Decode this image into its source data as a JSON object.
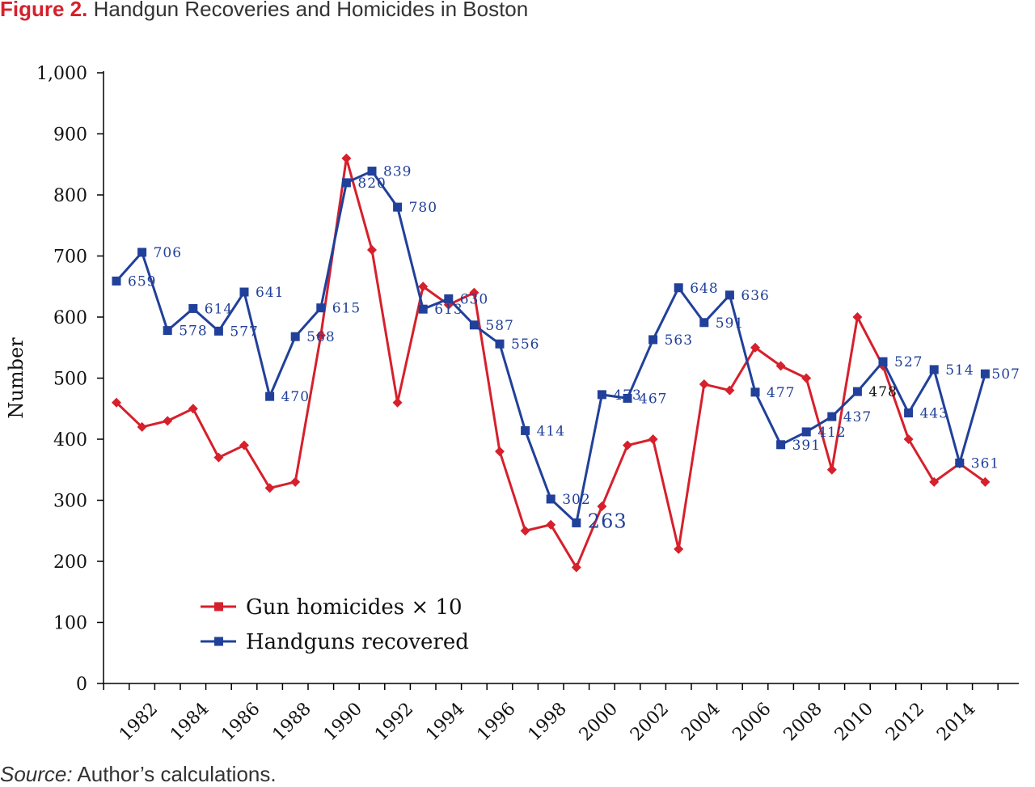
{
  "figure": {
    "label": "Figure 2.",
    "title": "Handgun Recoveries and Homicides in Boston",
    "source_label": "Source:",
    "source_text": "Author’s calculations."
  },
  "colors": {
    "homicides": "#d6202c",
    "handguns": "#21409a",
    "axis": "#000000",
    "text": "#333333"
  },
  "chart_data": {
    "type": "line",
    "title": "Handgun Recoveries and Homicides in Boston",
    "ylabel": "Number",
    "xlabel": "",
    "ylim": [
      0,
      1000
    ],
    "yticks": [
      0,
      100,
      200,
      300,
      400,
      500,
      600,
      700,
      800,
      900,
      1000
    ],
    "ytick_labels": [
      "0",
      "100",
      "200",
      "300",
      "400",
      "500",
      "600",
      "700",
      "800",
      "900",
      "1,000"
    ],
    "x": [
      1981,
      1982,
      1983,
      1984,
      1985,
      1986,
      1987,
      1988,
      1989,
      1990,
      1991,
      1992,
      1993,
      1994,
      1995,
      1996,
      1997,
      1998,
      1999,
      2000,
      2001,
      2002,
      2003,
      2004,
      2005,
      2006,
      2007,
      2008,
      2009,
      2010,
      2011,
      2012,
      2013,
      2014,
      2015
    ],
    "xtick_labels": [
      "1982",
      "1984",
      "1986",
      "1988",
      "1990",
      "1992",
      "1994",
      "1996",
      "1998",
      "2000",
      "2002",
      "2004",
      "2006",
      "2008",
      "2010",
      "2012",
      "2014"
    ],
    "legend_position": "lower-left",
    "grid": false,
    "series": [
      {
        "name": "Gun homicides × 10",
        "color": "#d6202c",
        "marker": "diamond",
        "values": [
          460,
          420,
          430,
          450,
          370,
          390,
          320,
          330,
          570,
          860,
          710,
          460,
          650,
          620,
          640,
          380,
          250,
          260,
          190,
          290,
          390,
          400,
          220,
          490,
          480,
          550,
          520,
          500,
          350,
          600,
          520,
          400,
          330,
          360,
          330
        ],
        "labels": []
      },
      {
        "name": "Handguns recovered",
        "color": "#21409a",
        "marker": "square",
        "values": [
          659,
          706,
          578,
          614,
          577,
          641,
          470,
          568,
          615,
          820,
          839,
          780,
          613,
          630,
          587,
          556,
          414,
          302,
          263,
          473,
          467,
          563,
          648,
          591,
          636,
          477,
          391,
          412,
          437,
          478,
          527,
          443,
          514,
          361,
          507
        ],
        "labels": [
          "659",
          "706",
          "578",
          "614",
          "577",
          "641",
          "470",
          "568",
          "615",
          "820",
          "839",
          "780",
          "613",
          "630",
          "587",
          "556",
          "414",
          "302",
          "263",
          "473",
          "467",
          "563",
          "648",
          "591",
          "636",
          "477",
          "391",
          "412",
          "437",
          "478",
          "527",
          "443",
          "514",
          "361",
          "507"
        ]
      }
    ]
  }
}
